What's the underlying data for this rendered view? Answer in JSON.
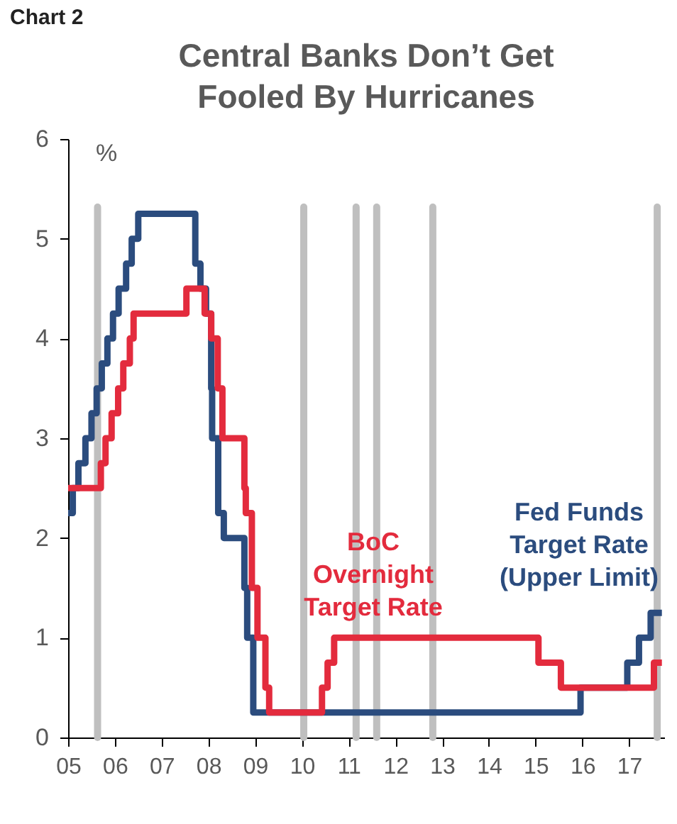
{
  "chart_data": {
    "type": "step",
    "title": "Central Banks Don’t Get Fooled By Hurricanes",
    "ylabel": "%",
    "annotations": [
      "Chart 2"
    ],
    "xlim": [
      2005,
      2017.75
    ],
    "xticks": [
      {
        "value": 2005,
        "label": "05"
      },
      {
        "value": 2006,
        "label": "06"
      },
      {
        "value": 2007,
        "label": "07"
      },
      {
        "value": 2008,
        "label": "08"
      },
      {
        "value": 2009,
        "label": "09"
      },
      {
        "value": 2010,
        "label": "10"
      },
      {
        "value": 2011,
        "label": "11"
      },
      {
        "value": 2012,
        "label": "12"
      },
      {
        "value": 2013,
        "label": "13"
      },
      {
        "value": 2014,
        "label": "14"
      },
      {
        "value": 2015,
        "label": "15"
      },
      {
        "value": 2016,
        "label": "16"
      },
      {
        "value": 2017,
        "label": "17"
      }
    ],
    "ylim": [
      0,
      6
    ],
    "yticks": [
      0,
      1,
      2,
      3,
      4,
      5,
      6
    ],
    "grid": false,
    "legend": false,
    "series": [
      {
        "name": "Fed Funds Target Rate (Upper Limit)",
        "color": "#2b4c7e",
        "x": [
          2005.0,
          2005.1,
          2005.22,
          2005.37,
          2005.5,
          2005.61,
          2005.72,
          2005.84,
          2005.96,
          2006.08,
          2006.24,
          2006.36,
          2006.5,
          2007.72,
          2007.83,
          2007.95,
          2008.06,
          2008.08,
          2008.21,
          2008.33,
          2008.77,
          2008.83,
          2008.96,
          2015.96,
          2016.96,
          2017.21,
          2017.46,
          2017.7
        ],
        "values": [
          2.25,
          2.5,
          2.75,
          3.0,
          3.25,
          3.5,
          3.75,
          4.0,
          4.25,
          4.5,
          4.75,
          5.0,
          5.25,
          4.75,
          4.5,
          4.25,
          3.5,
          3.0,
          2.25,
          2.0,
          1.5,
          1.0,
          0.25,
          0.5,
          0.75,
          1.0,
          1.25,
          1.25
        ]
      },
      {
        "name": "BoC Overnight Target Rate",
        "color": "#e32b3d",
        "x": [
          2005.0,
          2005.7,
          2005.8,
          2005.93,
          2006.07,
          2006.18,
          2006.32,
          2006.4,
          2007.53,
          2007.92,
          2008.06,
          2008.2,
          2008.3,
          2008.77,
          2008.8,
          2008.93,
          2009.05,
          2009.22,
          2009.3,
          2010.43,
          2010.55,
          2010.69,
          2015.06,
          2015.54,
          2017.53,
          2017.7
        ],
        "values": [
          2.5,
          2.75,
          3.0,
          3.25,
          3.5,
          3.75,
          4.0,
          4.25,
          4.5,
          4.25,
          4.0,
          3.5,
          3.0,
          2.5,
          2.25,
          1.5,
          1.0,
          0.5,
          0.25,
          0.5,
          0.75,
          1.0,
          0.75,
          0.5,
          0.75,
          0.75
        ]
      }
    ],
    "ref_lines": [
      {
        "axis": "x",
        "value": 2005.63,
        "color": "#bfbfbf"
      },
      {
        "axis": "x",
        "value": 2010.04,
        "color": "#bfbfbf"
      },
      {
        "axis": "x",
        "value": 2011.16,
        "color": "#bfbfbf"
      },
      {
        "axis": "x",
        "value": 2011.6,
        "color": "#bfbfbf"
      },
      {
        "axis": "x",
        "value": 2012.8,
        "color": "#bfbfbf"
      },
      {
        "axis": "x",
        "value": 2017.6,
        "color": "#bfbfbf"
      }
    ]
  }
}
